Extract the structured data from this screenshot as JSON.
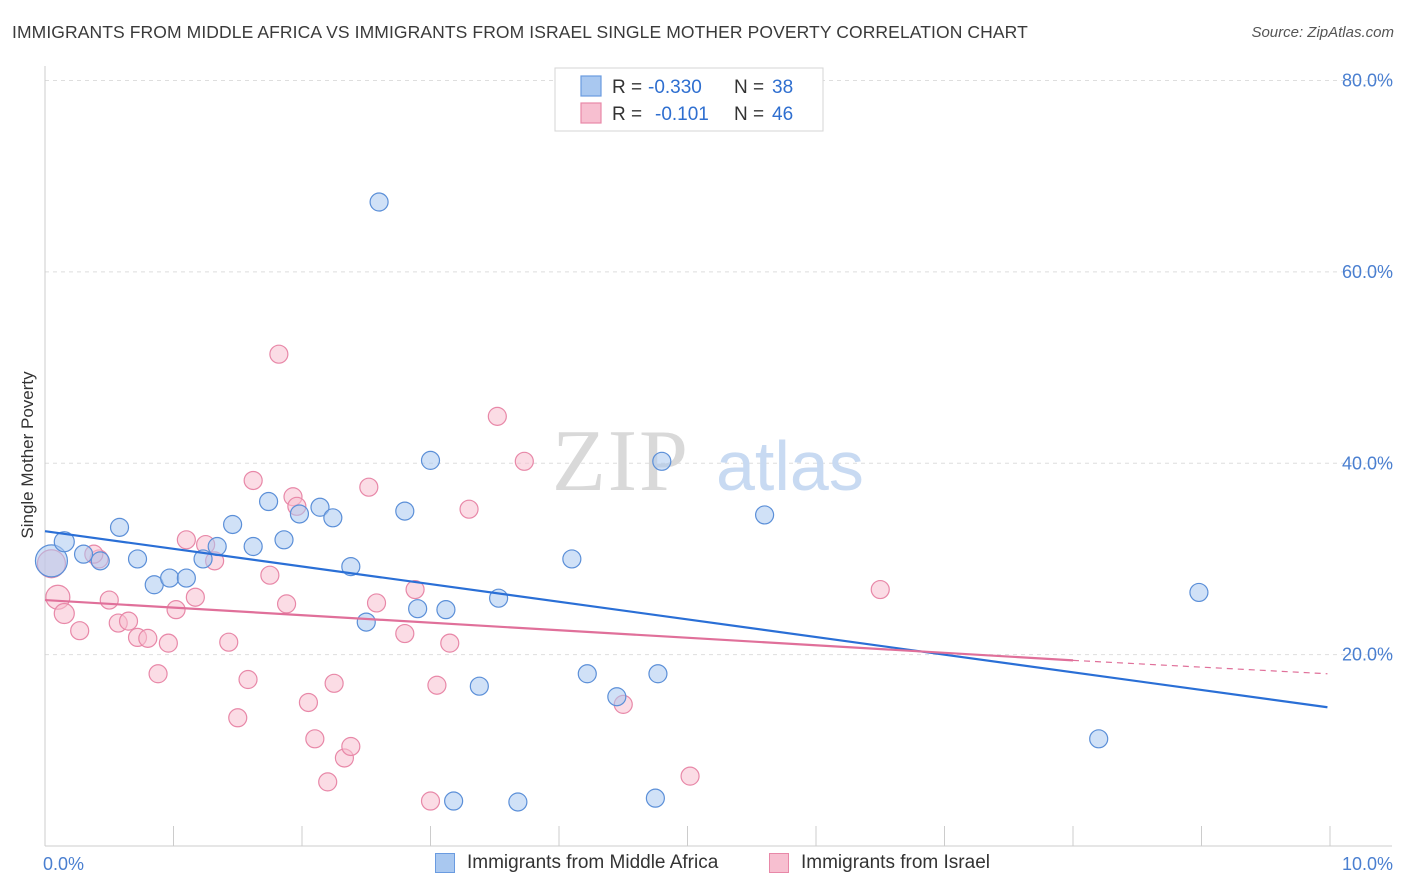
{
  "title": "IMMIGRANTS FROM MIDDLE AFRICA VS IMMIGRANTS FROM ISRAEL SINGLE MOTHER POVERTY CORRELATION CHART",
  "source": "Source: ZipAtlas.com",
  "watermark": {
    "zip": "ZIP",
    "atlas": "atlas"
  },
  "legend": {
    "r_label": "R =",
    "n_label": "N =",
    "rows": [
      {
        "r": "-0.330",
        "n": "38",
        "color": "#a9c8f0",
        "stroke": "#6a9be0"
      },
      {
        "r": "-0.101",
        "n": "46",
        "color": "#f7bfd0",
        "stroke": "#e888a8"
      }
    ]
  },
  "chart_data": {
    "type": "scatter",
    "title": "IMMIGRANTS FROM MIDDLE AFRICA VS IMMIGRANTS FROM ISRAEL SINGLE MOTHER POVERTY CORRELATION CHART",
    "xlabel": "",
    "ylabel": "Single Mother Poverty",
    "xlim": [
      0,
      10
    ],
    "ylim": [
      0,
      80
    ],
    "x_tick_labels": [
      "0.0%",
      "10.0%"
    ],
    "y_ticks": [
      20,
      40,
      60,
      80
    ],
    "y_tick_labels": [
      "20.0%",
      "40.0%",
      "60.0%",
      "80.0%"
    ],
    "grid": true,
    "legend_position": "top-center",
    "series": [
      {
        "name": "Immigrants from Middle Africa",
        "color": "#a9c8f0",
        "stroke": "#5b8fd8",
        "line_color": "#2a6fd6",
        "trend": {
          "x": [
            0,
            9.98
          ],
          "y": [
            32.9,
            14.5
          ],
          "dashed_to": null
        },
        "points": [
          [
            0.05,
            29.8,
            16
          ],
          [
            0.15,
            31.8,
            10
          ],
          [
            0.3,
            30.5,
            9
          ],
          [
            0.43,
            29.8,
            9
          ],
          [
            0.58,
            33.3,
            9
          ],
          [
            0.72,
            30.0,
            9
          ],
          [
            0.85,
            27.3,
            9
          ],
          [
            0.97,
            28.0,
            9
          ],
          [
            1.1,
            28.0,
            9
          ],
          [
            1.23,
            30.0,
            9
          ],
          [
            1.34,
            31.3,
            9
          ],
          [
            1.46,
            33.6,
            9
          ],
          [
            1.62,
            31.3,
            9
          ],
          [
            1.74,
            36.0,
            9
          ],
          [
            1.86,
            32.0,
            9
          ],
          [
            1.98,
            34.7,
            9
          ],
          [
            2.14,
            35.4,
            9
          ],
          [
            2.24,
            34.3,
            9
          ],
          [
            2.38,
            29.2,
            9
          ],
          [
            2.5,
            23.4,
            9
          ],
          [
            2.6,
            67.3,
            9
          ],
          [
            2.8,
            35.0,
            9
          ],
          [
            2.9,
            24.8,
            9
          ],
          [
            3.0,
            40.3,
            9
          ],
          [
            3.12,
            24.7,
            9
          ],
          [
            3.18,
            4.7,
            9
          ],
          [
            3.38,
            16.7,
            9
          ],
          [
            3.53,
            25.9,
            9
          ],
          [
            3.68,
            4.6,
            9
          ],
          [
            4.1,
            30.0,
            9
          ],
          [
            4.22,
            18.0,
            9
          ],
          [
            4.45,
            15.6,
            9
          ],
          [
            4.77,
            18.0,
            9
          ],
          [
            4.8,
            40.2,
            9
          ],
          [
            4.75,
            5.0,
            9
          ],
          [
            5.6,
            34.6,
            9
          ],
          [
            8.2,
            11.2,
            9
          ],
          [
            8.98,
            26.5,
            9
          ]
        ]
      },
      {
        "name": "Immigrants from Israel",
        "color": "#f7bfd0",
        "stroke": "#e888a8",
        "line_color": "#e0709a",
        "trend": {
          "x": [
            0,
            8.0
          ],
          "y": [
            25.7,
            19.4
          ],
          "dashed_to": [
            9.98,
            18.0
          ]
        },
        "points": [
          [
            0.05,
            29.5,
            14
          ],
          [
            0.1,
            26.0,
            12
          ],
          [
            0.15,
            24.3,
            10
          ],
          [
            0.27,
            22.5,
            9
          ],
          [
            0.42,
            30.0,
            9
          ],
          [
            0.38,
            30.5,
            9
          ],
          [
            0.5,
            25.7,
            9
          ],
          [
            0.57,
            23.3,
            9
          ],
          [
            0.65,
            23.5,
            9
          ],
          [
            0.72,
            21.8,
            9
          ],
          [
            0.8,
            21.7,
            9
          ],
          [
            0.88,
            18.0,
            9
          ],
          [
            0.96,
            21.2,
            9
          ],
          [
            1.02,
            24.7,
            9
          ],
          [
            1.1,
            32.0,
            9
          ],
          [
            1.17,
            26.0,
            9
          ],
          [
            1.25,
            31.5,
            9
          ],
          [
            1.32,
            29.8,
            9
          ],
          [
            1.43,
            21.3,
            9
          ],
          [
            1.5,
            13.4,
            9
          ],
          [
            1.58,
            17.4,
            9
          ],
          [
            1.62,
            38.2,
            9
          ],
          [
            1.75,
            28.3,
            9
          ],
          [
            1.82,
            51.4,
            9
          ],
          [
            1.88,
            25.3,
            9
          ],
          [
            1.93,
            36.5,
            9
          ],
          [
            1.96,
            35.5,
            9
          ],
          [
            2.05,
            15.0,
            9
          ],
          [
            2.1,
            11.2,
            9
          ],
          [
            2.2,
            6.7,
            9
          ],
          [
            2.25,
            17.0,
            9
          ],
          [
            2.33,
            9.2,
            9
          ],
          [
            2.38,
            10.4,
            9
          ],
          [
            2.52,
            37.5,
            9
          ],
          [
            2.58,
            25.4,
            9
          ],
          [
            2.8,
            22.2,
            9
          ],
          [
            2.88,
            26.8,
            9
          ],
          [
            3.0,
            4.7,
            9
          ],
          [
            3.05,
            16.8,
            9
          ],
          [
            3.15,
            21.2,
            9
          ],
          [
            3.3,
            35.2,
            9
          ],
          [
            3.52,
            44.9,
            9
          ],
          [
            3.73,
            40.2,
            9
          ],
          [
            4.5,
            14.8,
            9
          ],
          [
            5.02,
            7.3,
            9
          ],
          [
            6.5,
            26.8,
            9
          ]
        ]
      }
    ]
  }
}
